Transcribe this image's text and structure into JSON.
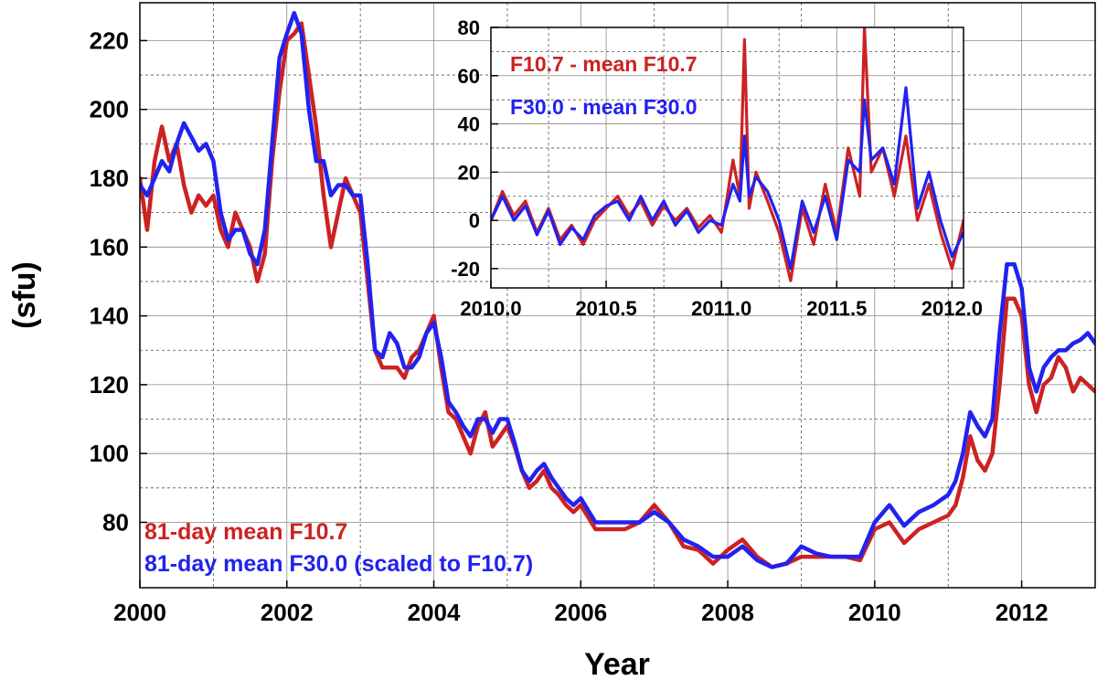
{
  "chart_data": [
    {
      "type": "line",
      "xlabel": "Year",
      "ylabel": "(sfu)",
      "xlim": [
        2000,
        2013
      ],
      "ylim": [
        61,
        231
      ],
      "x_ticks": [
        2000,
        2002,
        2004,
        2006,
        2008,
        2010,
        2012
      ],
      "y_ticks": [
        80,
        100,
        120,
        140,
        160,
        180,
        200,
        220
      ],
      "grid": true,
      "legend_position": "bottom-left",
      "colors": {
        "F10.7": "#cc2222",
        "F30.0": "#2222ee"
      },
      "series": [
        {
          "name": "81-day mean F10.7",
          "color": "#cc2222",
          "x": [
            2000.0,
            2000.1,
            2000.2,
            2000.3,
            2000.4,
            2000.5,
            2000.6,
            2000.7,
            2000.8,
            2000.9,
            2001.0,
            2001.1,
            2001.2,
            2001.3,
            2001.4,
            2001.5,
            2001.6,
            2001.7,
            2001.8,
            2001.9,
            2002.0,
            2002.1,
            2002.2,
            2002.3,
            2002.4,
            2002.5,
            2002.6,
            2002.7,
            2002.8,
            2002.9,
            2003.0,
            2003.1,
            2003.2,
            2003.3,
            2003.4,
            2003.5,
            2003.6,
            2003.7,
            2003.8,
            2003.9,
            2004.0,
            2004.1,
            2004.2,
            2004.3,
            2004.4,
            2004.5,
            2004.6,
            2004.7,
            2004.8,
            2004.9,
            2005.0,
            2005.1,
            2005.2,
            2005.3,
            2005.4,
            2005.5,
            2005.6,
            2005.7,
            2005.8,
            2005.9,
            2006.0,
            2006.2,
            2006.4,
            2006.6,
            2006.8,
            2007.0,
            2007.2,
            2007.4,
            2007.6,
            2007.8,
            2008.0,
            2008.2,
            2008.4,
            2008.6,
            2008.8,
            2009.0,
            2009.2,
            2009.4,
            2009.6,
            2009.8,
            2010.0,
            2010.2,
            2010.4,
            2010.6,
            2010.8,
            2011.0,
            2011.1,
            2011.2,
            2011.3,
            2011.4,
            2011.5,
            2011.6,
            2011.7,
            2011.8,
            2011.9,
            2012.0,
            2012.1,
            2012.2,
            2012.3,
            2012.4,
            2012.5,
            2012.6,
            2012.7,
            2012.8,
            2012.9,
            2013.0
          ],
          "values": [
            180,
            165,
            185,
            195,
            185,
            190,
            178,
            170,
            175,
            172,
            175,
            165,
            160,
            170,
            165,
            160,
            150,
            158,
            185,
            205,
            220,
            222,
            225,
            210,
            195,
            175,
            160,
            170,
            180,
            175,
            170,
            150,
            130,
            125,
            125,
            125,
            122,
            128,
            130,
            135,
            140,
            125,
            112,
            110,
            105,
            100,
            108,
            112,
            102,
            105,
            108,
            102,
            95,
            90,
            92,
            95,
            90,
            88,
            85,
            83,
            85,
            78,
            78,
            78,
            80,
            85,
            80,
            73,
            72,
            68,
            72,
            75,
            70,
            67,
            68,
            70,
            70,
            70,
            70,
            69,
            78,
            80,
            74,
            78,
            80,
            82,
            85,
            93,
            105,
            98,
            95,
            100,
            120,
            145,
            145,
            140,
            120,
            112,
            120,
            122,
            128,
            125,
            118,
            122,
            120,
            118
          ]
        },
        {
          "name": "81-day mean F30.0 (scaled to F10.7)",
          "color": "#2222ee",
          "x": [
            2000.0,
            2000.1,
            2000.2,
            2000.3,
            2000.4,
            2000.5,
            2000.6,
            2000.7,
            2000.8,
            2000.9,
            2001.0,
            2001.1,
            2001.2,
            2001.3,
            2001.4,
            2001.5,
            2001.6,
            2001.7,
            2001.8,
            2001.9,
            2002.0,
            2002.1,
            2002.2,
            2002.3,
            2002.4,
            2002.5,
            2002.6,
            2002.7,
            2002.8,
            2002.9,
            2003.0,
            2003.1,
            2003.2,
            2003.3,
            2003.4,
            2003.5,
            2003.6,
            2003.7,
            2003.8,
            2003.9,
            2004.0,
            2004.1,
            2004.2,
            2004.3,
            2004.4,
            2004.5,
            2004.6,
            2004.7,
            2004.8,
            2004.9,
            2005.0,
            2005.1,
            2005.2,
            2005.3,
            2005.4,
            2005.5,
            2005.6,
            2005.7,
            2005.8,
            2005.9,
            2006.0,
            2006.2,
            2006.4,
            2006.6,
            2006.8,
            2007.0,
            2007.2,
            2007.4,
            2007.6,
            2007.8,
            2008.0,
            2008.2,
            2008.4,
            2008.6,
            2008.8,
            2009.0,
            2009.2,
            2009.4,
            2009.6,
            2009.8,
            2010.0,
            2010.2,
            2010.4,
            2010.6,
            2010.8,
            2011.0,
            2011.1,
            2011.2,
            2011.3,
            2011.4,
            2011.5,
            2011.6,
            2011.7,
            2011.8,
            2011.9,
            2012.0,
            2012.1,
            2012.2,
            2012.3,
            2012.4,
            2012.5,
            2012.6,
            2012.7,
            2012.8,
            2012.9,
            2013.0
          ],
          "values": [
            178,
            175,
            180,
            185,
            182,
            190,
            196,
            192,
            188,
            190,
            185,
            170,
            162,
            165,
            165,
            158,
            155,
            165,
            190,
            215,
            222,
            228,
            222,
            200,
            185,
            185,
            175,
            178,
            178,
            175,
            175,
            155,
            130,
            128,
            135,
            132,
            125,
            125,
            128,
            135,
            138,
            128,
            115,
            112,
            108,
            105,
            110,
            110,
            106,
            110,
            110,
            103,
            95,
            92,
            95,
            97,
            93,
            90,
            87,
            85,
            87,
            80,
            80,
            80,
            80,
            83,
            80,
            75,
            73,
            70,
            70,
            73,
            69,
            67,
            68,
            73,
            71,
            70,
            70,
            70,
            80,
            85,
            79,
            83,
            85,
            88,
            92,
            100,
            112,
            108,
            105,
            110,
            135,
            155,
            155,
            148,
            125,
            118,
            125,
            128,
            130,
            130,
            132,
            133,
            135,
            132
          ]
        }
      ]
    },
    {
      "type": "line",
      "xlabel": "",
      "ylabel": "",
      "xlim": [
        2010.0,
        2012.05
      ],
      "ylim": [
        -28,
        80
      ],
      "x_ticks": [
        "2010.0",
        "2010.5",
        "2011.0",
        "2011.5",
        "2012.0"
      ],
      "y_ticks": [
        -20,
        0,
        20,
        40,
        60,
        80
      ],
      "grid": true,
      "legend_position": "top-left",
      "series": [
        {
          "name": "F10.7 - mean F10.7",
          "color": "#cc2222",
          "x": [
            2010.0,
            2010.05,
            2010.1,
            2010.15,
            2010.2,
            2010.25,
            2010.3,
            2010.35,
            2010.4,
            2010.45,
            2010.5,
            2010.55,
            2010.6,
            2010.65,
            2010.7,
            2010.75,
            2010.8,
            2010.85,
            2010.9,
            2010.95,
            2011.0,
            2011.05,
            2011.08,
            2011.1,
            2011.12,
            2011.15,
            2011.2,
            2011.25,
            2011.3,
            2011.35,
            2011.4,
            2011.45,
            2011.5,
            2011.55,
            2011.6,
            2011.62,
            2011.65,
            2011.7,
            2011.75,
            2011.8,
            2011.85,
            2011.9,
            2011.95,
            2012.0,
            2012.05
          ],
          "values": [
            0,
            12,
            2,
            8,
            -5,
            5,
            -8,
            -2,
            -10,
            0,
            5,
            10,
            2,
            8,
            -2,
            6,
            0,
            5,
            -3,
            2,
            -5,
            25,
            10,
            75,
            5,
            20,
            8,
            -5,
            -25,
            5,
            -10,
            15,
            -5,
            30,
            10,
            80,
            20,
            30,
            10,
            35,
            0,
            15,
            -5,
            -20,
            0
          ]
        },
        {
          "name": "F30.0 - mean F30.0",
          "color": "#2222ee",
          "x": [
            2010.0,
            2010.05,
            2010.1,
            2010.15,
            2010.2,
            2010.25,
            2010.3,
            2010.35,
            2010.4,
            2010.45,
            2010.5,
            2010.55,
            2010.6,
            2010.65,
            2010.7,
            2010.75,
            2010.8,
            2010.85,
            2010.9,
            2010.95,
            2011.0,
            2011.05,
            2011.08,
            2011.1,
            2011.12,
            2011.15,
            2011.2,
            2011.25,
            2011.3,
            2011.35,
            2011.4,
            2011.45,
            2011.5,
            2011.55,
            2011.6,
            2011.62,
            2011.65,
            2011.7,
            2011.75,
            2011.8,
            2011.85,
            2011.9,
            2011.95,
            2012.0,
            2012.05
          ],
          "values": [
            0,
            10,
            0,
            6,
            -6,
            4,
            -10,
            -3,
            -8,
            2,
            6,
            8,
            0,
            10,
            0,
            8,
            -2,
            4,
            -5,
            0,
            -2,
            15,
            8,
            35,
            10,
            18,
            12,
            0,
            -20,
            8,
            -5,
            10,
            -8,
            25,
            20,
            50,
            25,
            30,
            15,
            55,
            5,
            20,
            0,
            -15,
            -5
          ]
        }
      ]
    }
  ]
}
